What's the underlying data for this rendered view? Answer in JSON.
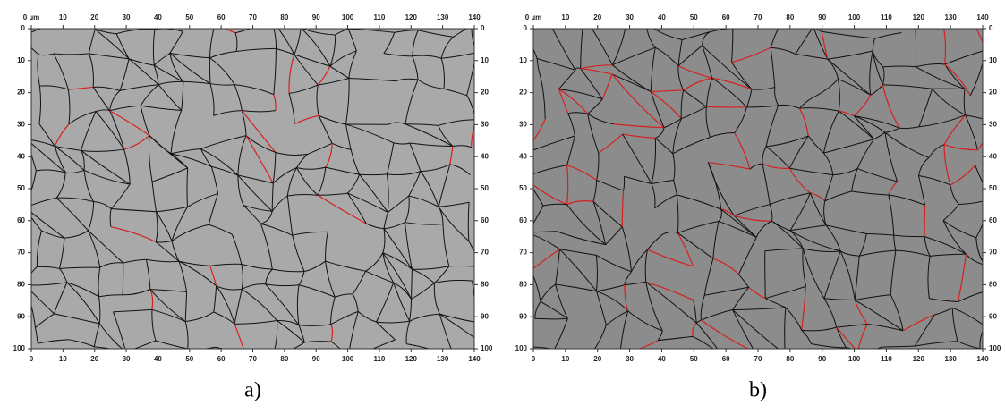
{
  "panels": [
    {
      "caption": "a)",
      "xlim": [
        0,
        140
      ],
      "ylim": [
        0,
        100
      ],
      "top_xticks": [
        {
          "value": 0,
          "label": "0 µm"
        },
        10,
        20,
        30,
        40,
        50,
        60,
        70,
        80,
        90,
        100,
        110,
        120,
        130,
        140
      ],
      "xticks": [
        0,
        10,
        20,
        30,
        40,
        50,
        60,
        70,
        80,
        90,
        100,
        110,
        120,
        130,
        140
      ],
      "yticks": [
        0,
        10,
        20,
        30,
        40,
        50,
        60,
        70,
        80,
        90,
        100
      ]
    },
    {
      "caption": "b)",
      "xlim": [
        0,
        140
      ],
      "ylim": [
        0,
        100
      ],
      "top_xticks": [
        {
          "value": 0,
          "label": "0 µm"
        },
        10,
        20,
        30,
        40,
        50,
        60,
        70,
        80,
        90,
        100,
        110,
        120,
        130,
        140
      ],
      "xticks": [
        0,
        10,
        20,
        30,
        40,
        50,
        60,
        70,
        80,
        90,
        100,
        110,
        120,
        130,
        140
      ],
      "yticks": [
        0,
        10,
        20,
        30,
        40,
        50,
        60,
        70,
        80,
        90,
        100
      ]
    }
  ]
}
